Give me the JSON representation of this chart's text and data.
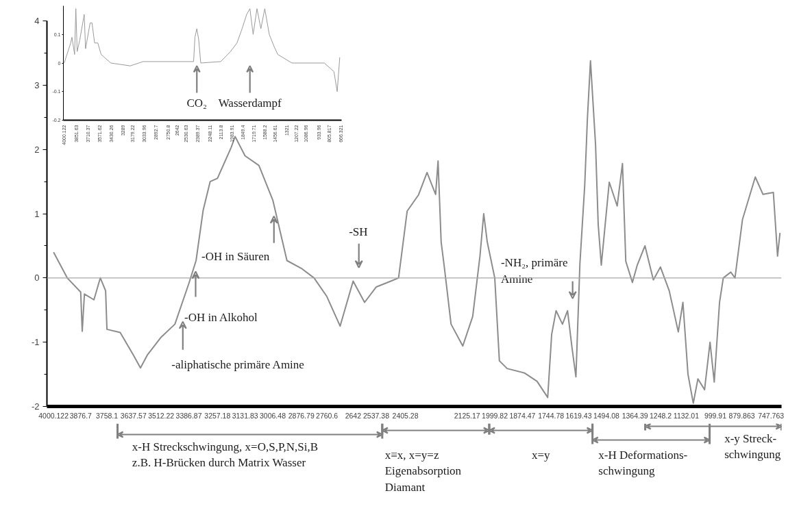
{
  "chart_data": [
    {
      "type": "line",
      "x": [
        4000,
        3938,
        3877,
        3870,
        3860,
        3817,
        3788,
        3764,
        3758,
        3698,
        3638,
        3606,
        3575,
        3512,
        3450,
        3387,
        3354,
        3322,
        3290,
        3257,
        3195,
        3177,
        3132,
        3069,
        3006,
        2942,
        2877,
        2819,
        2761,
        2701,
        2642,
        2590,
        2537,
        2471,
        2436,
        2397,
        2346,
        2307,
        2268,
        2257,
        2243,
        2229,
        2198,
        2145,
        2100,
        2067,
        2050,
        2034,
        2000,
        1979,
        1944,
        1865,
        1808,
        1760,
        1742,
        1722,
        1693,
        1670,
        1650,
        1632,
        1614,
        1592,
        1580,
        1566,
        1543,
        1531,
        1517,
        1481,
        1445,
        1421,
        1406,
        1376,
        1354,
        1319,
        1281,
        1249,
        1209,
        1168,
        1147,
        1124,
        1100,
        1079,
        1049,
        1024,
        1005,
        981,
        964,
        930,
        911,
        877,
        819,
        784,
        737,
        718,
        707
      ],
      "series": [
        {
          "color": "#8c8c8c",
          "values": [
            0.4,
            0.0,
            -0.22,
            -0.83,
            -0.25,
            -0.34,
            0.0,
            -0.2,
            -0.8,
            -0.85,
            -1.2,
            -1.4,
            -1.2,
            -0.92,
            -0.72,
            -0.09,
            0.27,
            1.05,
            1.5,
            1.55,
            2.03,
            2.2,
            1.9,
            1.75,
            1.21,
            0.27,
            0.15,
            0.0,
            -0.29,
            -0.75,
            -0.05,
            -0.38,
            -0.14,
            -0.05,
            0.0,
            1.04,
            1.29,
            1.64,
            1.3,
            1.82,
            0.56,
            0.18,
            -0.72,
            -1.06,
            -0.6,
            0.34,
            1.0,
            0.56,
            0.0,
            -1.29,
            -1.41,
            -1.48,
            -1.61,
            -1.86,
            -0.88,
            -0.51,
            -0.72,
            -0.51,
            -1.08,
            -1.54,
            0.22,
            1.45,
            2.48,
            3.38,
            2.07,
            0.83,
            0.2,
            1.49,
            1.12,
            1.78,
            0.26,
            -0.07,
            0.2,
            0.5,
            -0.03,
            0.17,
            -0.2,
            -0.84,
            -0.38,
            -1.5,
            -1.95,
            -1.57,
            -1.74,
            -1.0,
            -1.62,
            -0.38,
            0.0,
            0.09,
            0.0,
            0.91,
            1.57,
            1.3,
            1.33,
            0.34,
            0.7
          ]
        }
      ],
      "xlim": [
        4030,
        700
      ],
      "xticks": [
        4000.122,
        3876.7,
        3758.1,
        3637.57,
        3512.22,
        3386.87,
        3257.18,
        3131.83,
        3006.48,
        2876.79,
        2760.6,
        2642,
        2537.38,
        2405.28,
        2125.17,
        1999.82,
        1874.47,
        1744.78,
        1619.43,
        1494.08,
        1364.39,
        1248.2,
        1132.01,
        999.91,
        879.863,
        747.763
      ],
      "ylim": [
        -2,
        4
      ],
      "yticks": [
        -2,
        -1,
        0,
        1,
        2,
        3,
        4
      ],
      "ref_lines": [
        {
          "axis": "y",
          "value": 0,
          "color": "#a6a6a6"
        }
      ],
      "annotations": [
        "-aliphatische primäre Amine",
        {
          "text": "-OH in Alkohol",
          "x": 3356,
          "y": 0.1
        },
        {
          "text": "-OH in Säuren",
          "x": 3001,
          "y": 0.96
        },
        "-SH",
        "-NH₂, primäre\nAmine",
        "x-H Streckschwingung, x=O,S,P,N,Si,B\nz.B. H-Brücken durch Matrix Wasser",
        "x≡x, x=y=z\nEigenabsorption\nDiamant",
        "x=y",
        "x-H Deformations-\nschwingung",
        "x-y Streck-\nschwingung"
      ],
      "grid": false
    },
    {
      "type": "line",
      "x": [
        4000,
        3922,
        3907,
        3875,
        3860,
        3844,
        3813,
        3759,
        3743,
        3688,
        3665,
        3634,
        3595,
        3556,
        3439,
        3205,
        3050,
        2442,
        2426,
        2403,
        2380,
        2356,
        2115,
        1998,
        1920,
        1858,
        1803,
        1764,
        1725,
        1679,
        1632,
        1585,
        1531,
        1476,
        1429,
        1258,
        868,
        752,
        713,
        682
      ],
      "series": [
        {
          "color": "#999999",
          "values": [
            0.0,
            0.07,
            0.09,
            0.03,
            0.19,
            0.04,
            0.08,
            0.17,
            0.05,
            0.14,
            0.14,
            0.07,
            0.07,
            0.03,
            0.0,
            -0.01,
            0.005,
            0.005,
            0.09,
            0.12,
            0.08,
            0.0,
            0.005,
            0.04,
            0.07,
            0.12,
            0.17,
            0.19,
            0.1,
            0.19,
            0.12,
            0.19,
            0.1,
            0.06,
            0.03,
            0.0,
            0.0,
            -0.03,
            -0.1,
            0.02
          ]
        }
      ],
      "xlim": [
        4010,
        660
      ],
      "xticks": [
        4000.122,
        3851.63,
        3710.37,
        3571.62,
        3430.26,
        3289,
        3179.22,
        3033.96,
        2892.7,
        2750.8,
        2642,
        2530.63,
        2389.37,
        2248.11,
        2113.8,
        1983.91,
        1849.4,
        1719.71,
        1588.2,
        1456.61,
        1321,
        1207.22,
        1086.96,
        933.96,
        805.817,
        666.321
      ],
      "ylim": [
        -0.2,
        0.2
      ],
      "yticks": [
        0.1,
        0,
        -0.1,
        -0.2
      ],
      "annotations": [
        "CO₂",
        "Wasserdampf"
      ],
      "grid": false
    }
  ]
}
